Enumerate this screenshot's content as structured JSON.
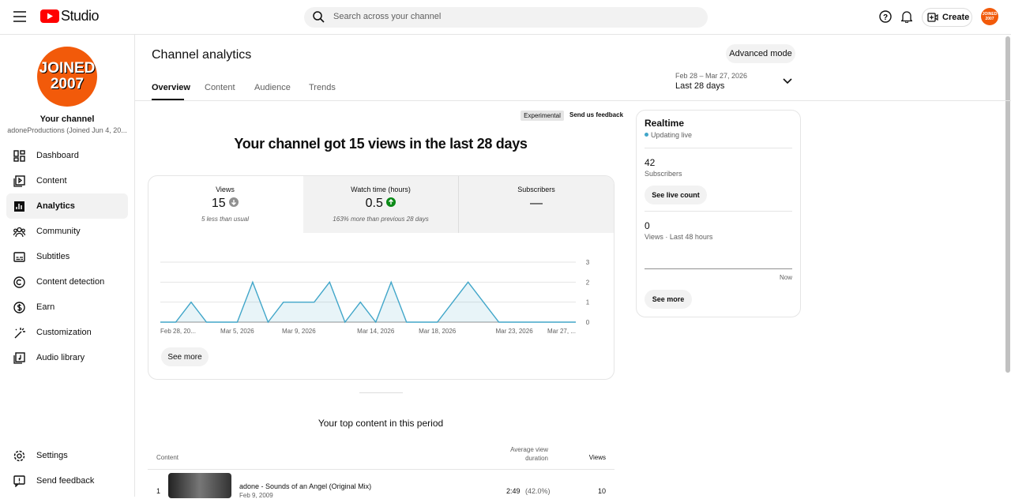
{
  "header": {
    "logo": "Studio",
    "search_placeholder": "Search across your channel",
    "create": "Create",
    "avatar_text": [
      "JOINED",
      "2007"
    ]
  },
  "sidebar": {
    "avatar_text": [
      "JOINED",
      "2007"
    ],
    "channel_label": "Your channel",
    "channel_name": "adoneProductions (Joined Jun 4, 20...",
    "menu": [
      "Dashboard",
      "Content",
      "Analytics",
      "Community",
      "Subtitles",
      "Content detection",
      "Earn",
      "Customization",
      "Audio library"
    ],
    "footer": [
      "Settings",
      "Send feedback"
    ]
  },
  "page": {
    "title": "Channel analytics",
    "advanced_mode": "Advanced mode",
    "tabs": [
      "Overview",
      "Content",
      "Audience",
      "Trends"
    ],
    "date_range": "Feb 28 – Mar 27, 2026",
    "period": "Last 28 days",
    "experimental": "Experimental",
    "feedback": "Send us feedback",
    "headline": "Your channel got 15 views in the last 28 days"
  },
  "metrics": [
    {
      "label": "Views",
      "value": 15,
      "note": "5 less than usual"
    },
    {
      "label": "Watch time (hours)",
      "value": 0.5,
      "note": "163% more than previous 28 days"
    },
    {
      "label": "Subscribers",
      "value": "—"
    }
  ],
  "chart_data": {
    "type": "line",
    "categories": [
      "Feb 28, 20...",
      null,
      null,
      null,
      null,
      "Mar 5, 2026",
      null,
      null,
      null,
      "Mar 9, 2026",
      null,
      null,
      null,
      null,
      "Mar 14, 2026",
      null,
      null,
      null,
      "Mar 18, 2026",
      null,
      null,
      null,
      null,
      "Mar 23, 2026",
      null,
      null,
      null,
      "Mar 27, ..."
    ],
    "values": [
      0,
      0,
      1,
      0,
      0,
      0,
      2,
      0,
      1,
      1,
      1,
      2,
      0,
      1,
      0,
      2,
      0,
      0,
      0,
      1,
      2,
      1,
      0,
      0,
      0,
      0,
      0,
      0
    ],
    "color": "#41a6c9",
    "ylim": [
      0,
      3
    ],
    "yticks": [
      0,
      1,
      2,
      3
    ],
    "grid": true
  },
  "see_more": "See more",
  "top_content": {
    "title": "Your top content in this period",
    "columns": {
      "content": "Content",
      "avg_duration": [
        "Average view",
        "duration"
      ],
      "views": "Views"
    },
    "rows": [
      {
        "rank": 1,
        "title": "adone - Sounds of an Angel (Original Mix)",
        "date": "Feb 9, 2009",
        "duration": "2:49",
        "percent": "(42.0%)",
        "views": 10
      }
    ]
  },
  "realtime": {
    "title": "Realtime",
    "status": "Updating live",
    "subscribers": 42,
    "subscribers_label": "Subscribers",
    "live_count": "See live count",
    "views": 0,
    "views_label": "Views · Last 48 hours",
    "now": "Now",
    "see_more": "See more"
  }
}
